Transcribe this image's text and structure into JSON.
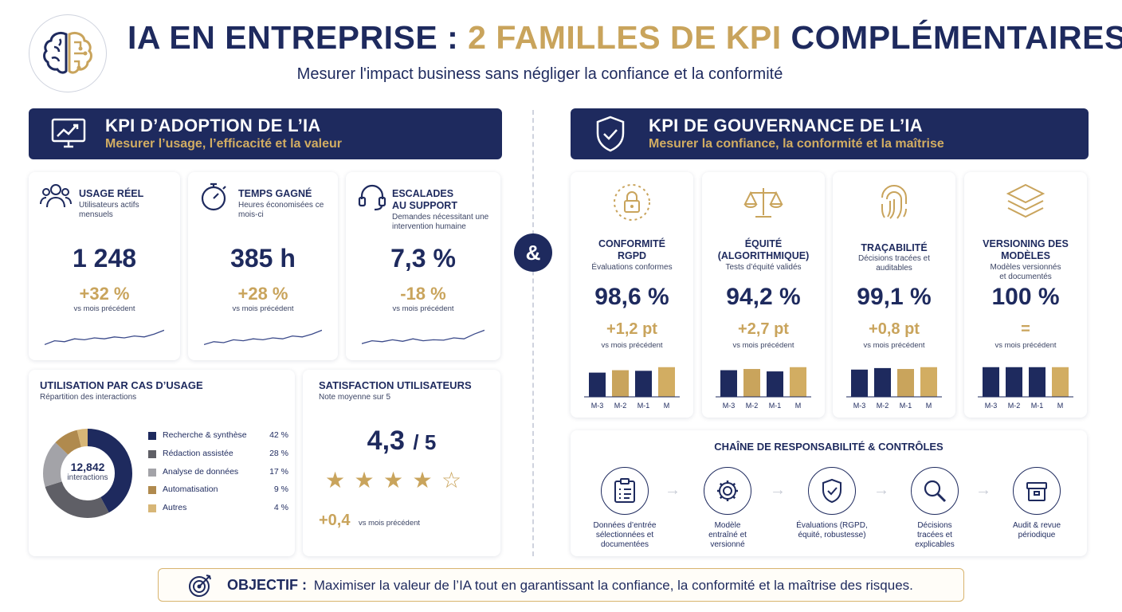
{
  "header": {
    "title_part1": "IA EN ENTREPRISE : ",
    "title_part2": "2 FAMILLES DE KPI",
    "title_part3": " COMPLÉMENTAIRES",
    "subtitle": "Mesurer l'impact business sans négliger la confiance et la conformité",
    "logo_icon": "brain-circuit-icon"
  },
  "connector": "&",
  "adoption": {
    "title": "KPI D’ADOPTION DE L’IA",
    "subtitle": "Mesurer l’usage, l’efficacité et la valeur",
    "icon": "monitor-chart-icon",
    "kpis": [
      {
        "title": "USAGE RÉEL",
        "subtitle": "Utilisateurs actifs mensuels",
        "value": "1 248",
        "delta": "+32 %",
        "delta_label": "vs mois précédent",
        "icon": "users-icon",
        "trend": [
          0.15,
          0.35,
          0.3,
          0.45,
          0.4,
          0.5,
          0.45,
          0.55,
          0.5,
          0.6,
          0.55,
          0.7,
          0.9
        ]
      },
      {
        "title": "TEMPS GAGNÉ",
        "subtitle": "Heures économisées ce mois-ci",
        "value": "385 h",
        "delta": "+28 %",
        "delta_label": "vs mois précédent",
        "icon": "stopwatch-icon",
        "trend": [
          0.15,
          0.3,
          0.25,
          0.4,
          0.35,
          0.45,
          0.4,
          0.5,
          0.45,
          0.6,
          0.55,
          0.7,
          0.9
        ]
      },
      {
        "title": "ESCALADES AU SUPPORT",
        "subtitle": "Demandes nécessitant une intervention humaine",
        "value": "7,3 %",
        "delta": "-18 %",
        "delta_label": "vs mois précédent",
        "icon": "headset-icon",
        "trend": [
          0.2,
          0.35,
          0.3,
          0.4,
          0.32,
          0.45,
          0.35,
          0.4,
          0.38,
          0.5,
          0.45,
          0.7,
          0.9
        ]
      }
    ],
    "usage": {
      "title": "UTILISATION PAR CAS D’USAGE",
      "subtitle": "Répartition des interactions",
      "total_value": "12,842",
      "total_label": "interactions",
      "items": [
        {
          "label": "Recherche & synthèse",
          "pct": "42 %",
          "value": 42,
          "color": "#1e2a5e"
        },
        {
          "label": "Rédaction assistée",
          "pct": "28 %",
          "value": 28,
          "color": "#5f5f66"
        },
        {
          "label": "Analyse de données",
          "pct": "17 %",
          "value": 17,
          "color": "#a3a3a8"
        },
        {
          "label": "Automatisation",
          "pct": "9 %",
          "value": 9,
          "color": "#b08a4e"
        },
        {
          "label": "Autres",
          "pct": "4 %",
          "value": 4,
          "color": "#d7b677"
        }
      ]
    },
    "satisfaction": {
      "title": "SATISFACTION UTILISATEURS",
      "subtitle": "Note moyenne sur 5",
      "score": "4,3",
      "max": "/ 5",
      "rating": 4,
      "delta": "+0,4",
      "delta_label": "vs mois précédent"
    }
  },
  "governance": {
    "title": "KPI DE GOUVERNANCE DE L’IA",
    "subtitle": "Mesurer la confiance, la conformité et la maîtrise",
    "icon": "shield-check-icon",
    "months": [
      "M-3",
      "M-2",
      "M-1",
      "M"
    ],
    "kpis": [
      {
        "title": "CONFORMITÉ RGPD",
        "subtitle": "Évaluations conformes",
        "value": "98,6 %",
        "delta": "+1,2 pt",
        "delta_label": "vs mois précédent",
        "icon": "lock-circle-icon",
        "bars": [
          0.8,
          0.88,
          0.86,
          0.98
        ],
        "bar_colors": [
          "#1e2a5e",
          "#c9a45c",
          "#1e2a5e",
          "#d2ad62"
        ]
      },
      {
        "title": "ÉQUITÉ (ALGORITHMIQUE)",
        "subtitle": "Tests d’équité validés",
        "value": "94,2 %",
        "delta": "+2,7 pt",
        "delta_label": "vs mois précédent",
        "icon": "scales-icon",
        "bars": [
          0.88,
          0.92,
          0.84,
          0.98
        ],
        "bar_colors": [
          "#1e2a5e",
          "#c9a45c",
          "#1e2a5e",
          "#d2ad62"
        ]
      },
      {
        "title": "TRAÇABILITÉ",
        "subtitle": "Décisions tracées et auditables",
        "value": "99,1 %",
        "delta": "+0,8 pt",
        "delta_label": "vs mois précédent",
        "icon": "fingerprint-icon",
        "bars": [
          0.9,
          0.95,
          0.92,
          0.98
        ],
        "bar_colors": [
          "#1e2a5e",
          "#1e2a5e",
          "#c9a45c",
          "#d2ad62"
        ]
      },
      {
        "title": "VERSIONING DES MODÈLES",
        "subtitle": "Modèles versionnés et documentés",
        "value": "100 %",
        "delta": "=",
        "delta_label": "vs mois précédent",
        "icon": "layers-icon",
        "bars": [
          0.98,
          0.98,
          0.98,
          0.98
        ],
        "bar_colors": [
          "#1e2a5e",
          "#1e2a5e",
          "#1e2a5e",
          "#d2ad62"
        ]
      }
    ],
    "chain": {
      "title": "CHAÎNE DE RESPONSABILITÉ & CONTRÔLES",
      "steps": [
        {
          "label": "Données d’entrée sélectionnées et documentées",
          "icon": "clipboard-list-icon"
        },
        {
          "label": "Modèle entraîné et versionné",
          "icon": "gear-icon"
        },
        {
          "label": "Évaluations (RGPD, équité, robustesse)",
          "icon": "shield-check-icon"
        },
        {
          "label": "Décisions tracées et explicables",
          "icon": "magnifier-icon"
        },
        {
          "label": "Audit & revue périodique",
          "icon": "archive-box-icon"
        }
      ]
    }
  },
  "objective": {
    "label": "OBJECTIF :",
    "text": "Maximiser la valeur de l’IA tout en garantissant la confiance, la conformité et la maîtrise des risques.",
    "icon": "target-icon"
  }
}
